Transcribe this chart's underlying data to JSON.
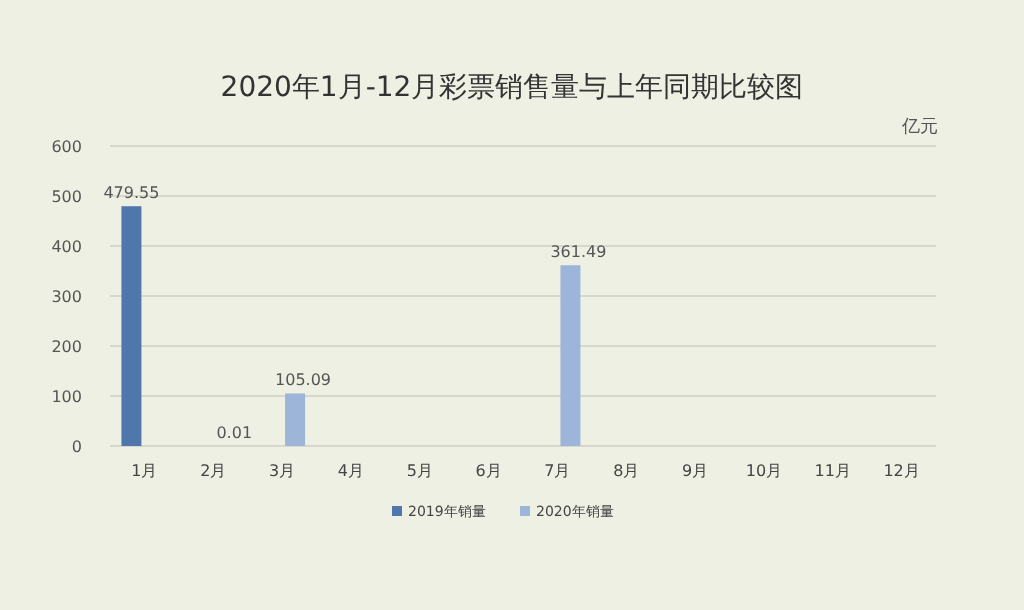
{
  "chart_data": {
    "type": "bar",
    "title": "2020年1月-12月彩票销售量与上年同期比较图",
    "ylabel": "亿元",
    "categories": [
      "1月",
      "2月",
      "3月",
      "4月",
      "5月",
      "6月",
      "7月",
      "8月",
      "9月",
      "10月",
      "11月",
      "12月"
    ],
    "series": [
      {
        "name": "2019年销量",
        "color": "#4f77ab",
        "values": [
          479.55,
          null,
          null,
          null,
          null,
          null,
          null,
          null,
          null,
          null,
          null,
          null
        ],
        "value_labels": [
          "479.55",
          null,
          null,
          null,
          null,
          null,
          null,
          null,
          null,
          null,
          null,
          null
        ]
      },
      {
        "name": "2020年销量",
        "color": "#9db5d8",
        "values": [
          null,
          0.01,
          105.09,
          null,
          null,
          null,
          361.49,
          null,
          null,
          null,
          null,
          null
        ],
        "value_labels": [
          null,
          "0.01",
          "105.09",
          null,
          null,
          null,
          "361.49",
          null,
          null,
          null,
          null,
          null
        ]
      }
    ],
    "ylim": [
      0,
      600
    ],
    "yticks": [
      0,
      100,
      200,
      300,
      400,
      500,
      600
    ],
    "grid": "y",
    "legend": "bottom"
  }
}
